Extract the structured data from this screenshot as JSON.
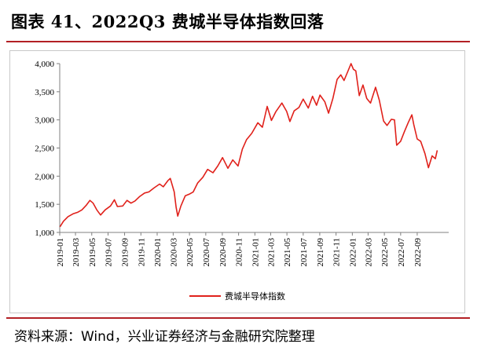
{
  "figure": {
    "title": "图表 41、2022Q3 费城半导体指数回落",
    "source": "资料来源：Wind，兴业证券经济与金融研究院整理"
  },
  "colors": {
    "accent_rule": "#b32025",
    "series_line": "#e0211b",
    "axis": "#808080"
  },
  "chart_data": {
    "type": "line",
    "title": "",
    "xlabel": "",
    "ylabel": "",
    "ylim": [
      1000,
      4000
    ],
    "yticks": [
      1000,
      1500,
      2000,
      2500,
      3000,
      3500,
      4000
    ],
    "ytick_labels": [
      "1,000",
      "1,500",
      "2,000",
      "2,500",
      "3,000",
      "3,500",
      "4,000"
    ],
    "xticks": [
      "2019-01",
      "2019-03",
      "2019-05",
      "2019-07",
      "2019-09",
      "2019-11",
      "2020-01",
      "2020-03",
      "2020-05",
      "2020-07",
      "2020-09",
      "2020-11",
      "2021-01",
      "2021-03",
      "2021-05",
      "2021-07",
      "2021-09",
      "2021-11",
      "2022-01",
      "2022-03",
      "2022-05",
      "2022-07",
      "2022-09"
    ],
    "xlim": [
      "2019-01",
      "2022-12"
    ],
    "grid": false,
    "legend": "bottom-center",
    "series": [
      {
        "name": "费城半导体指数",
        "points": [
          [
            "2019-01-02",
            1100
          ],
          [
            "2019-01-15",
            1200
          ],
          [
            "2019-02-01",
            1280
          ],
          [
            "2019-02-20",
            1330
          ],
          [
            "2019-03-10",
            1360
          ],
          [
            "2019-03-25",
            1400
          ],
          [
            "2019-04-10",
            1480
          ],
          [
            "2019-04-24",
            1570
          ],
          [
            "2019-05-06",
            1520
          ],
          [
            "2019-05-20",
            1400
          ],
          [
            "2019-06-03",
            1310
          ],
          [
            "2019-06-20",
            1400
          ],
          [
            "2019-07-10",
            1470
          ],
          [
            "2019-07-25",
            1580
          ],
          [
            "2019-08-05",
            1460
          ],
          [
            "2019-08-25",
            1470
          ],
          [
            "2019-09-10",
            1570
          ],
          [
            "2019-09-25",
            1520
          ],
          [
            "2019-10-10",
            1560
          ],
          [
            "2019-10-28",
            1640
          ],
          [
            "2019-11-15",
            1700
          ],
          [
            "2019-12-01",
            1720
          ],
          [
            "2019-12-20",
            1790
          ],
          [
            "2020-01-10",
            1860
          ],
          [
            "2020-01-24",
            1810
          ],
          [
            "2020-02-10",
            1920
          ],
          [
            "2020-02-19",
            1960
          ],
          [
            "2020-03-05",
            1720
          ],
          [
            "2020-03-12",
            1450
          ],
          [
            "2020-03-18",
            1290
          ],
          [
            "2020-03-30",
            1470
          ],
          [
            "2020-04-15",
            1650
          ],
          [
            "2020-04-30",
            1680
          ],
          [
            "2020-05-15",
            1720
          ],
          [
            "2020-06-01",
            1880
          ],
          [
            "2020-06-20",
            1980
          ],
          [
            "2020-07-08",
            2120
          ],
          [
            "2020-07-28",
            2060
          ],
          [
            "2020-08-15",
            2180
          ],
          [
            "2020-09-02",
            2330
          ],
          [
            "2020-09-22",
            2140
          ],
          [
            "2020-10-10",
            2290
          ],
          [
            "2020-10-30",
            2180
          ],
          [
            "2020-11-15",
            2480
          ],
          [
            "2020-12-01",
            2650
          ],
          [
            "2020-12-20",
            2760
          ],
          [
            "2021-01-12",
            2950
          ],
          [
            "2021-01-29",
            2870
          ],
          [
            "2021-02-16",
            3240
          ],
          [
            "2021-03-04",
            2990
          ],
          [
            "2021-03-20",
            3140
          ],
          [
            "2021-04-12",
            3300
          ],
          [
            "2021-04-30",
            3150
          ],
          [
            "2021-05-12",
            2970
          ],
          [
            "2021-05-28",
            3160
          ],
          [
            "2021-06-15",
            3220
          ],
          [
            "2021-07-01",
            3370
          ],
          [
            "2021-07-20",
            3210
          ],
          [
            "2021-08-05",
            3420
          ],
          [
            "2021-08-20",
            3260
          ],
          [
            "2021-09-02",
            3440
          ],
          [
            "2021-09-20",
            3320
          ],
          [
            "2021-10-04",
            3120
          ],
          [
            "2021-10-20",
            3380
          ],
          [
            "2021-11-05",
            3720
          ],
          [
            "2021-11-19",
            3800
          ],
          [
            "2021-12-01",
            3700
          ],
          [
            "2021-12-15",
            3860
          ],
          [
            "2021-12-27",
            4000
          ],
          [
            "2022-01-05",
            3900
          ],
          [
            "2022-01-14",
            3870
          ],
          [
            "2022-01-27",
            3430
          ],
          [
            "2022-02-10",
            3620
          ],
          [
            "2022-02-24",
            3380
          ],
          [
            "2022-03-10",
            3300
          ],
          [
            "2022-03-29",
            3580
          ],
          [
            "2022-04-12",
            3350
          ],
          [
            "2022-04-28",
            2980
          ],
          [
            "2022-05-11",
            2900
          ],
          [
            "2022-05-27",
            3010
          ],
          [
            "2022-06-08",
            3000
          ],
          [
            "2022-06-16",
            2550
          ],
          [
            "2022-07-01",
            2620
          ],
          [
            "2022-07-15",
            2790
          ],
          [
            "2022-07-29",
            2950
          ],
          [
            "2022-08-12",
            3090
          ],
          [
            "2022-08-19",
            2920
          ],
          [
            "2022-09-01",
            2660
          ],
          [
            "2022-09-14",
            2620
          ],
          [
            "2022-09-30",
            2400
          ],
          [
            "2022-10-13",
            2150
          ],
          [
            "2022-10-27",
            2360
          ],
          [
            "2022-11-08",
            2310
          ],
          [
            "2022-11-15",
            2460
          ]
        ]
      }
    ]
  }
}
